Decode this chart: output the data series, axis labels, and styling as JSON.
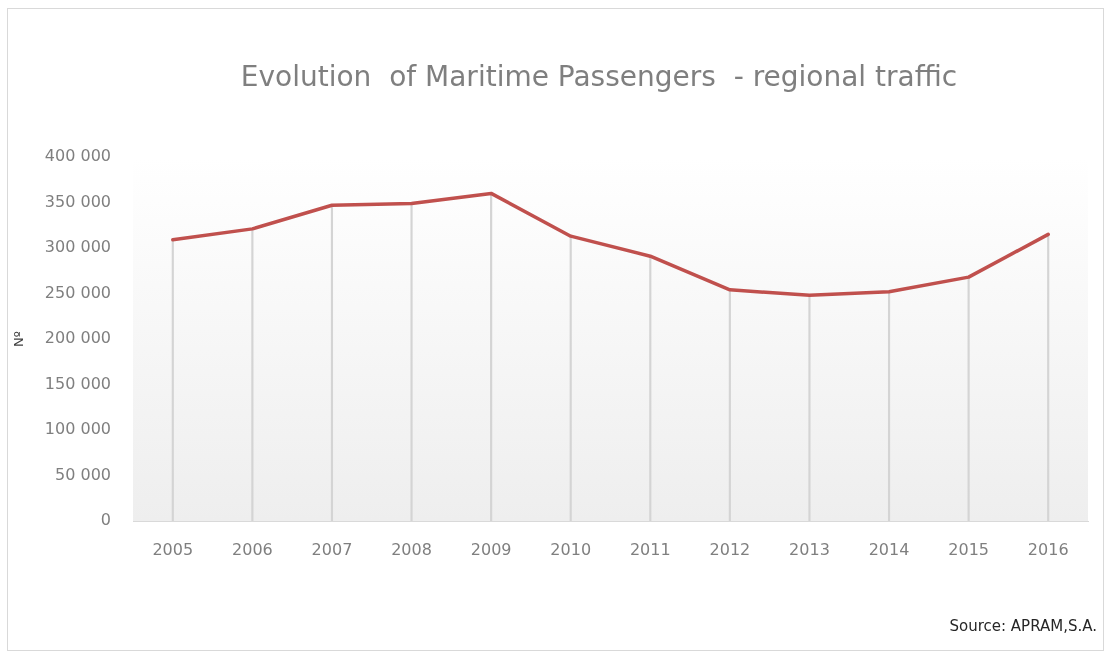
{
  "chart_data": {
    "type": "line",
    "title": "Evolution  of Maritime Passengers  - regional traffic",
    "ylabel": "Nº",
    "annotations": [
      "Source: APRAM,S.A."
    ],
    "categories": [
      "2005",
      "2006",
      "2007",
      "2008",
      "2009",
      "2010",
      "2011",
      "2012",
      "2013",
      "2014",
      "2015",
      "2016"
    ],
    "series": [
      {
        "color": "#c0504d",
        "values": [
          309000,
          321000,
          347000,
          349000,
          360000,
          313000,
          291000,
          254000,
          248000,
          252000,
          268000,
          315000
        ]
      },
      {
        "type": "bar",
        "color": "#d4d4d4",
        "values": [
          309000,
          321000,
          347000,
          349000,
          360000,
          313000,
          291000,
          254000,
          248000,
          252000,
          268000,
          315000
        ]
      }
    ],
    "ylim": [
      0,
      400000
    ],
    "yticks": [
      0,
      {
        "value": 50000,
        "label": "50 000"
      },
      {
        "value": 100000,
        "label": "100 000"
      },
      {
        "value": 150000,
        "label": "150 000"
      },
      {
        "value": 200000,
        "label": "200 000"
      },
      {
        "value": 250000,
        "label": "250 000"
      },
      {
        "value": 300000,
        "label": "300 000"
      },
      {
        "value": 350000,
        "label": "350 000"
      },
      {
        "value": 400000,
        "label": "400 000"
      }
    ],
    "marker": "none",
    "line_style": "solid"
  }
}
